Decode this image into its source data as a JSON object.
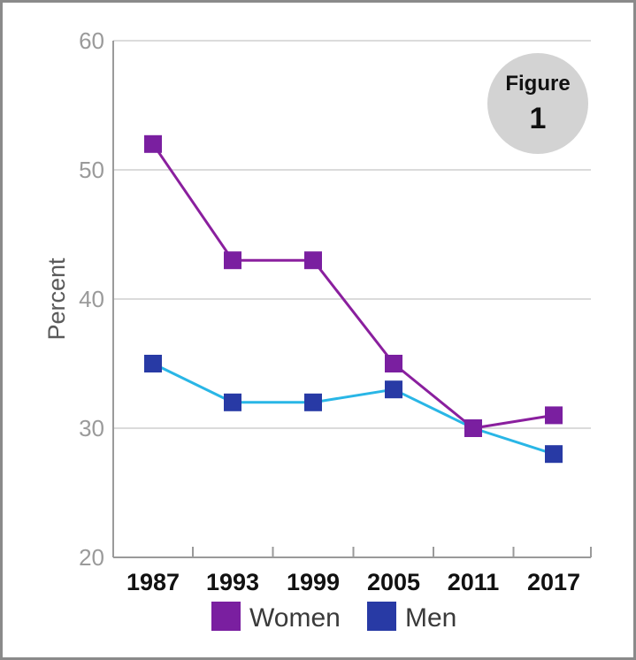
{
  "chart_data": {
    "type": "line",
    "title": "",
    "xlabel": "",
    "ylabel": "Percent",
    "categories": [
      "1987",
      "1993",
      "1999",
      "2005",
      "2011",
      "2017"
    ],
    "ylim": [
      20,
      60
    ],
    "yticks": [
      "20",
      "30",
      "40",
      "50",
      "60"
    ],
    "grid": true,
    "legend_position": "bottom",
    "series": [
      {
        "name": "Women",
        "values": [
          52,
          43,
          43,
          35,
          30,
          31
        ],
        "line_color": "#8a1f9e",
        "marker_color": "#7a1fa0"
      },
      {
        "name": "Men",
        "values": [
          35,
          32,
          32,
          33,
          30,
          28
        ],
        "line_color": "#29b6e6",
        "marker_color": "#283aa5"
      }
    ],
    "badge": {
      "line1": "Figure",
      "line2": "1",
      "color": "#d3d3d3"
    }
  }
}
